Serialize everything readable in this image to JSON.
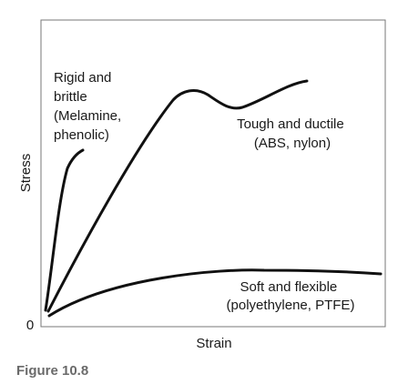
{
  "figure": {
    "caption": "Figure 10.8",
    "x_axis_label": "Strain",
    "y_axis_label": "Stress",
    "origin_label": "0"
  },
  "curves": {
    "rigid": {
      "line1": "Rigid and",
      "line2": "brittle",
      "line3": "(Melamine,",
      "line4": "phenolic)"
    },
    "tough": {
      "line1": "Tough and ductile",
      "line2": "(ABS, nylon)"
    },
    "soft": {
      "line1": "Soft and flexible",
      "line2": "(polyethylene, PTFE)"
    }
  },
  "colors": {
    "curve": "#111111",
    "frame": "#777777",
    "caption": "#6a6a6a"
  }
}
